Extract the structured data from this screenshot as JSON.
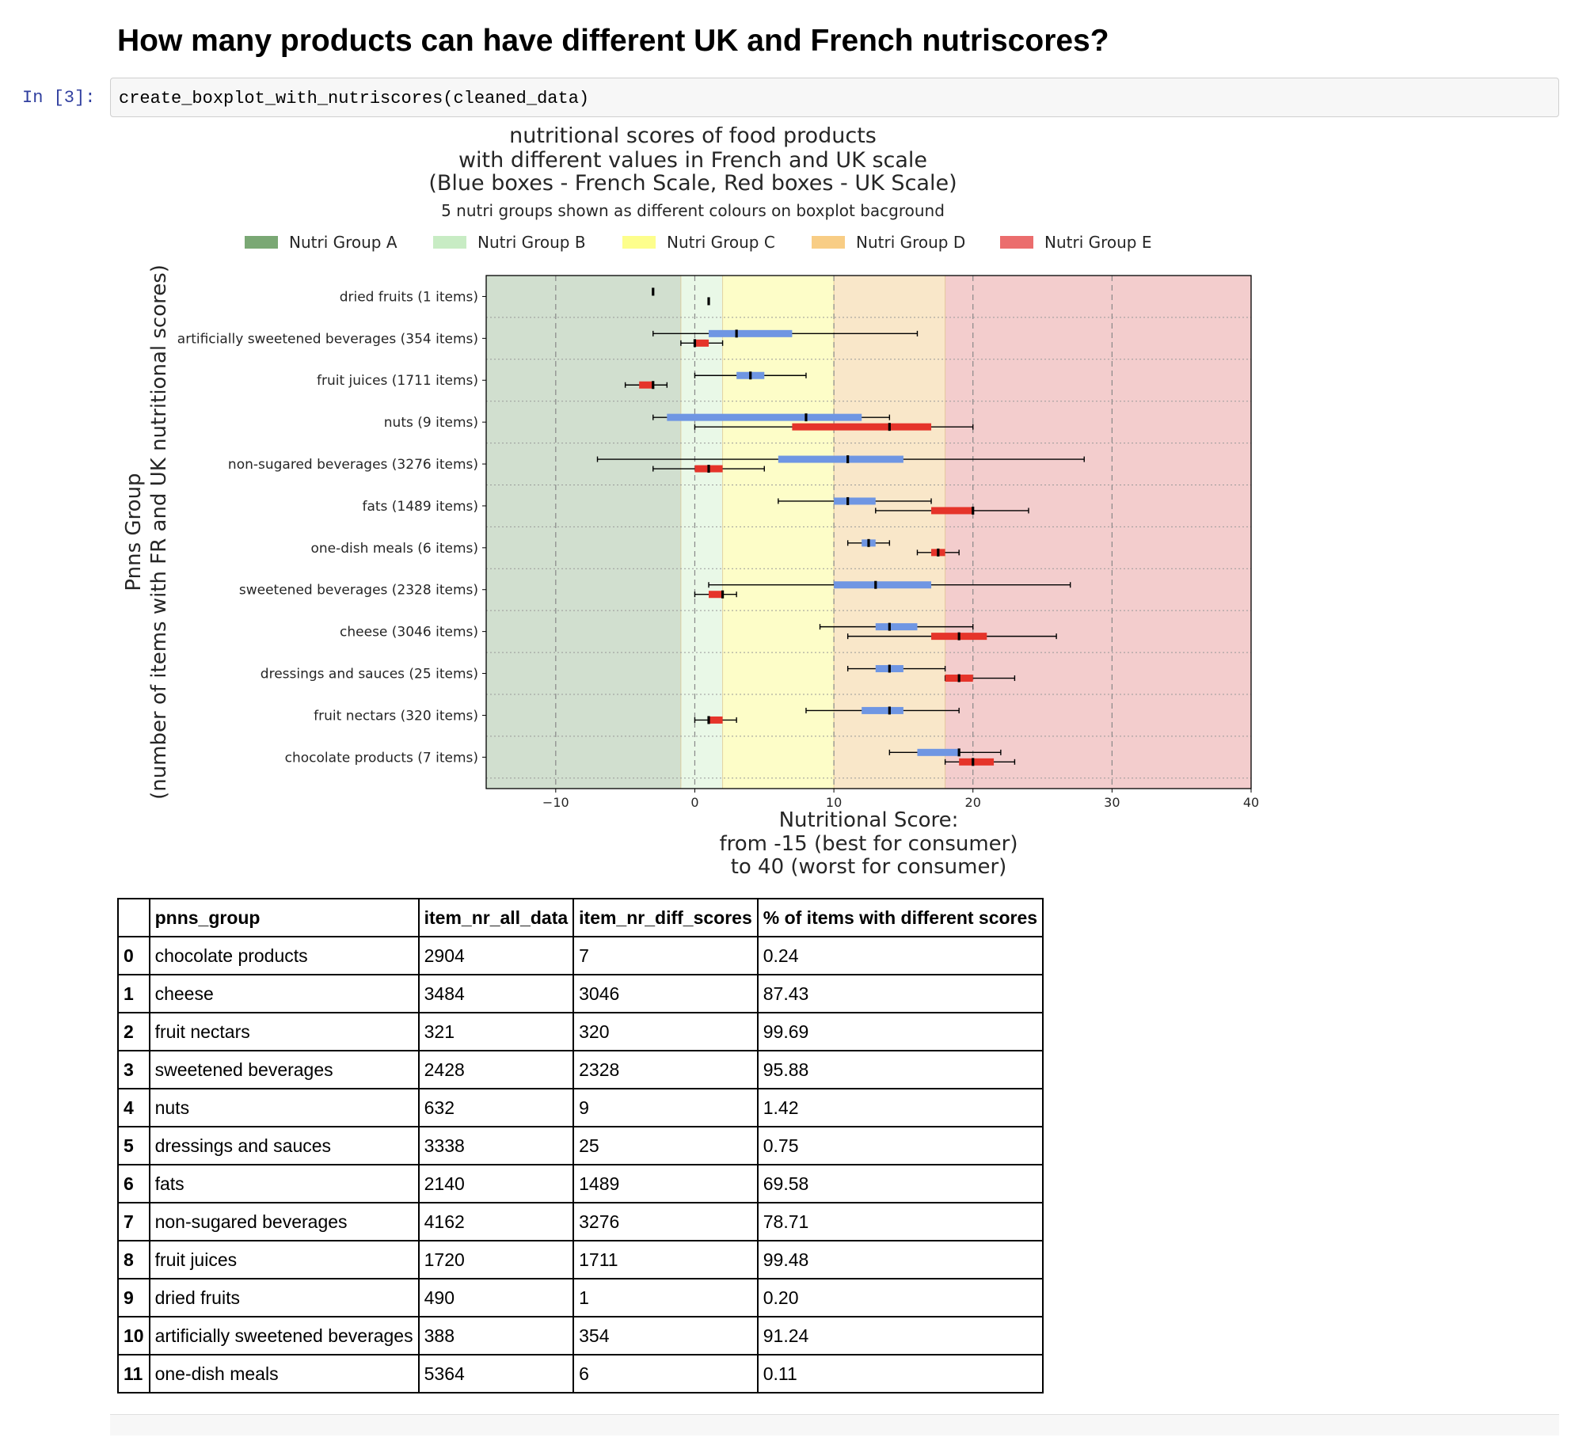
{
  "notebook": {
    "heading": "How many products can have different UK and French nutriscores?",
    "prompt": "In [3]:",
    "code": "create_boxplot_with_nutriscores(cleaned_data)"
  },
  "chart_data": {
    "type": "boxplot",
    "title_lines": [
      "nutritional scores of food products",
      "with different values in French and UK scale",
      "(Blue boxes - French Scale, Red boxes - UK Scale)"
    ],
    "subtitle": "5 nutri groups shown as different colours on boxplot bacground",
    "ylabel_lines": [
      "Pnns Group",
      "(number of items with FR and UK nutritional scores)"
    ],
    "xlabel_lines": [
      "Nutritional Score:",
      "from -15 (best for consumer)",
      "to 40 (worst for consumer)"
    ],
    "xlim": [
      -15,
      40
    ],
    "xticks": [
      -10,
      0,
      10,
      20,
      30,
      40
    ],
    "xtick_labels": [
      "−10",
      "0",
      "10",
      "20",
      "30",
      "40"
    ],
    "grid": "dashed vertical at ticks, dotted horizontal between groups",
    "legend_placement": "top",
    "legend": [
      {
        "label": "Nutri Group A",
        "color": "#7aa874"
      },
      {
        "label": "Nutri Group B",
        "color": "#c8ecc4"
      },
      {
        "label": "Nutri Group C",
        "color": "#fdfe8c"
      },
      {
        "label": "Nutri Group D",
        "color": "#f8cd85"
      },
      {
        "label": "Nutri Group E",
        "color": "#eb6d6d"
      }
    ],
    "background_bands": [
      {
        "group": "A",
        "from": -15,
        "to": -1,
        "color": "#d1dfcf"
      },
      {
        "group": "B",
        "from": -1,
        "to": 2,
        "color": "#e9f8e7"
      },
      {
        "group": "C",
        "from": 2,
        "to": 10,
        "color": "#fdfdc8"
      },
      {
        "group": "D",
        "from": 10,
        "to": 18,
        "color": "#f9e7c9"
      },
      {
        "group": "E",
        "from": 18,
        "to": 40,
        "color": "#f3cdcd"
      }
    ],
    "series_colors": {
      "French": "#6f96e3",
      "UK": "#e5342a"
    },
    "groups": [
      {
        "label": "dried fruits (1 items)",
        "french": {
          "whislo": -3,
          "q1": -3,
          "med": -3,
          "q3": -3,
          "whishi": -3
        },
        "uk": {
          "whislo": 1,
          "q1": 1,
          "med": 1,
          "q3": 1,
          "whishi": 1
        }
      },
      {
        "label": "artificially sweetened beverages (354 items)",
        "french": {
          "whislo": -3,
          "q1": 1,
          "med": 3,
          "q3": 7,
          "whishi": 16
        },
        "uk": {
          "whislo": -1,
          "q1": 0,
          "med": 0,
          "q3": 1,
          "whishi": 2
        }
      },
      {
        "label": "fruit juices (1711 items)",
        "french": {
          "whislo": 0,
          "q1": 3,
          "med": 4,
          "q3": 5,
          "whishi": 8
        },
        "uk": {
          "whislo": -5,
          "q1": -4,
          "med": -3,
          "q3": -3,
          "whishi": -2
        }
      },
      {
        "label": "nuts (9 items)",
        "french": {
          "whislo": -3,
          "q1": -2,
          "med": 8,
          "q3": 12,
          "whishi": 14
        },
        "uk": {
          "whislo": 0,
          "q1": 7,
          "med": 14,
          "q3": 17,
          "whishi": 20
        }
      },
      {
        "label": "non-sugared beverages (3276 items)",
        "french": {
          "whislo": -7,
          "q1": 6,
          "med": 11,
          "q3": 15,
          "whishi": 28
        },
        "uk": {
          "whislo": -3,
          "q1": 0,
          "med": 1,
          "q3": 2,
          "whishi": 5
        }
      },
      {
        "label": "fats (1489 items)",
        "french": {
          "whislo": 6,
          "q1": 10,
          "med": 11,
          "q3": 13,
          "whishi": 17
        },
        "uk": {
          "whislo": 13,
          "q1": 17,
          "med": 20,
          "q3": 20,
          "whishi": 24
        }
      },
      {
        "label": "one-dish meals (6 items)",
        "french": {
          "whislo": 11,
          "q1": 12,
          "med": 12.5,
          "q3": 13,
          "whishi": 14
        },
        "uk": {
          "whislo": 16,
          "q1": 17,
          "med": 17.5,
          "q3": 18,
          "whishi": 19
        }
      },
      {
        "label": "sweetened beverages (2328 items)",
        "french": {
          "whislo": 1,
          "q1": 10,
          "med": 13,
          "q3": 17,
          "whishi": 27
        },
        "uk": {
          "whislo": 0,
          "q1": 1,
          "med": 2,
          "q3": 2,
          "whishi": 3
        }
      },
      {
        "label": "cheese (3046 items)",
        "french": {
          "whislo": 9,
          "q1": 13,
          "med": 14,
          "q3": 16,
          "whishi": 20
        },
        "uk": {
          "whislo": 11,
          "q1": 17,
          "med": 19,
          "q3": 21,
          "whishi": 26
        }
      },
      {
        "label": "dressings and sauces (25 items)",
        "french": {
          "whislo": 11,
          "q1": 13,
          "med": 14,
          "q3": 15,
          "whishi": 18
        },
        "uk": {
          "whislo": 18,
          "q1": 18,
          "med": 19,
          "q3": 20,
          "whishi": 23
        }
      },
      {
        "label": "fruit nectars (320 items)",
        "french": {
          "whislo": 8,
          "q1": 12,
          "med": 14,
          "q3": 15,
          "whishi": 19
        },
        "uk": {
          "whislo": 0,
          "q1": 1,
          "med": 1,
          "q3": 2,
          "whishi": 3
        }
      },
      {
        "label": "chocolate products (7 items)",
        "french": {
          "whislo": 14,
          "q1": 16,
          "med": 19,
          "q3": 19,
          "whishi": 22
        },
        "uk": {
          "whislo": 18,
          "q1": 19,
          "med": 20,
          "q3": 21.5,
          "whishi": 23
        }
      }
    ]
  },
  "table": {
    "headers": [
      "",
      "pnns_group",
      "item_nr_all_data",
      "item_nr_diff_scores",
      "% of items with different scores"
    ],
    "rows": [
      [
        "0",
        "chocolate products",
        "2904",
        "7",
        "0.24"
      ],
      [
        "1",
        "cheese",
        "3484",
        "3046",
        "87.43"
      ],
      [
        "2",
        "fruit nectars",
        "321",
        "320",
        "99.69"
      ],
      [
        "3",
        "sweetened beverages",
        "2428",
        "2328",
        "95.88"
      ],
      [
        "4",
        "nuts",
        "632",
        "9",
        "1.42"
      ],
      [
        "5",
        "dressings and sauces",
        "3338",
        "25",
        "0.75"
      ],
      [
        "6",
        "fats",
        "2140",
        "1489",
        "69.58"
      ],
      [
        "7",
        "non-sugared beverages",
        "4162",
        "3276",
        "78.71"
      ],
      [
        "8",
        "fruit juices",
        "1720",
        "1711",
        "99.48"
      ],
      [
        "9",
        "dried fruits",
        "490",
        "1",
        "0.20"
      ],
      [
        "10",
        "artificially sweetened beverages",
        "388",
        "354",
        "91.24"
      ],
      [
        "11",
        "one-dish meals",
        "5364",
        "6",
        "0.11"
      ]
    ]
  }
}
